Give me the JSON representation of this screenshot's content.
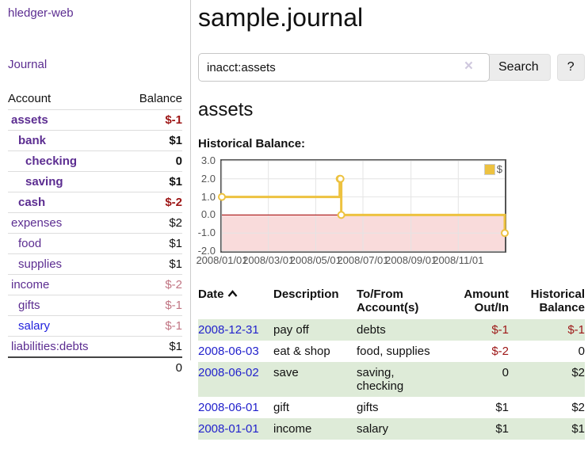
{
  "app": {
    "title": "hledger-web"
  },
  "sidebar": {
    "journal_link": "Journal",
    "accounts_table": {
      "headers": {
        "account": "Account",
        "balance": "Balance"
      },
      "rows": [
        {
          "name": "assets",
          "indent": 1,
          "bold": true,
          "name_color": "purple",
          "balance": "$-1",
          "balance_class": "neg-strong"
        },
        {
          "name": "bank",
          "indent": 2,
          "bold": true,
          "name_color": "purple",
          "balance": "$1",
          "balance_class": ""
        },
        {
          "name": "checking",
          "indent": 3,
          "bold": true,
          "name_color": "purple",
          "balance": "0",
          "balance_class": ""
        },
        {
          "name": "saving",
          "indent": 3,
          "bold": true,
          "name_color": "purple",
          "balance": "$1",
          "balance_class": ""
        },
        {
          "name": "cash",
          "indent": 2,
          "bold": true,
          "name_color": "purple",
          "balance": "$-2",
          "balance_class": "neg-strong"
        },
        {
          "name": "expenses",
          "indent": 1,
          "bold": false,
          "name_color": "purple",
          "balance": "$2",
          "balance_class": ""
        },
        {
          "name": "food",
          "indent": 2,
          "bold": false,
          "name_color": "purple",
          "balance": "$1",
          "balance_class": ""
        },
        {
          "name": "supplies",
          "indent": 2,
          "bold": false,
          "name_color": "purple",
          "balance": "$1",
          "balance_class": ""
        },
        {
          "name": "income",
          "indent": 1,
          "bold": false,
          "name_color": "purple",
          "balance": "$-2",
          "balance_class": "neg-dim"
        },
        {
          "name": "gifts",
          "indent": 2,
          "bold": false,
          "name_color": "purple",
          "balance": "$-1",
          "balance_class": "neg-dim"
        },
        {
          "name": "salary",
          "indent": 2,
          "bold": false,
          "name_color": "blue",
          "balance": "$-1",
          "balance_class": "neg-dim"
        },
        {
          "name": "liabilities:debts",
          "indent": 1,
          "bold": false,
          "name_color": "purple",
          "balance": "$1",
          "balance_class": ""
        }
      ],
      "total": "0"
    }
  },
  "header": {
    "title": "sample.journal"
  },
  "search": {
    "value": "inacct:assets",
    "clear_icon": "×",
    "search_button": "Search",
    "help_button": "?"
  },
  "account_page": {
    "title": "assets",
    "chart_label": "Historical Balance:"
  },
  "chart_data": {
    "type": "line",
    "step": true,
    "title": "Historical Balance:",
    "series": [
      {
        "name": "$",
        "color": "#edc240",
        "points": [
          [
            "2008-01-01",
            1
          ],
          [
            "2008-06-01",
            2
          ],
          [
            "2008-06-02",
            2
          ],
          [
            "2008-06-03",
            0
          ],
          [
            "2008-12-31",
            -1
          ]
        ]
      }
    ],
    "xlim": [
      "2008-01-01",
      "2008-12-31"
    ],
    "ylim": [
      -2,
      3
    ],
    "x_ticks": [
      "2008/01/01",
      "2008/03/01",
      "2008/05/01",
      "2008/07/01",
      "2008/09/01",
      "2008/11/01"
    ],
    "y_ticks": [
      3.0,
      2.0,
      1.0,
      0.0,
      -1.0,
      -2.0
    ],
    "y_tick_labels": [
      "3.0",
      "2.0",
      "1.0",
      "0.0",
      "-1.0",
      "-2.0"
    ],
    "grid": true,
    "legend_position": "top-right",
    "negative_region_color": "#f9dbdb",
    "zero_line_color": "#a40000"
  },
  "register": {
    "headers": {
      "date": "Date",
      "description": "Description",
      "accounts": "To/From Account(s)",
      "amount": "Amount Out/In",
      "balance": "Historical Balance"
    },
    "sort": {
      "column": "date",
      "direction": "asc"
    },
    "rows": [
      {
        "date": "2008-12-31",
        "description": "pay off",
        "accounts": "debts",
        "amount": "$-1",
        "amount_class": "neg-strong",
        "balance": "$-1",
        "balance_class": "neg-strong"
      },
      {
        "date": "2008-06-03",
        "description": "eat & shop",
        "accounts": "food, supplies",
        "amount": "$-2",
        "amount_class": "neg-strong",
        "balance": "0",
        "balance_class": ""
      },
      {
        "date": "2008-06-02",
        "description": "save",
        "accounts": "saving, checking",
        "amount": "0",
        "amount_class": "",
        "balance": "$2",
        "balance_class": ""
      },
      {
        "date": "2008-06-01",
        "description": "gift",
        "accounts": "gifts",
        "amount": "$1",
        "amount_class": "",
        "balance": "$2",
        "balance_class": ""
      },
      {
        "date": "2008-01-01",
        "description": "income",
        "accounts": "salary",
        "amount": "$1",
        "amount_class": "",
        "balance": "$1",
        "balance_class": ""
      }
    ]
  },
  "colors": {
    "link_purple": "#5c2d91",
    "link_blue": "#2222cc",
    "negative_strong": "#9d1616",
    "negative_dim": "#c17583",
    "row_stripe_green": "#deebd8",
    "chart_line_gold": "#edc240"
  }
}
